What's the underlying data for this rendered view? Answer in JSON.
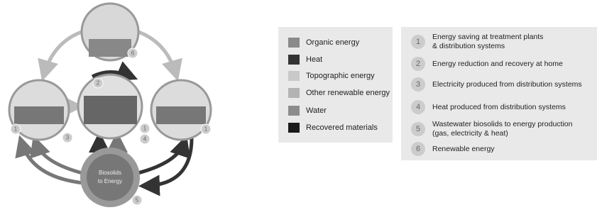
{
  "diagram": {
    "center_label": [
      "Biosolids",
      "to Energy"
    ],
    "badges": [
      "6",
      "2",
      "1",
      "3",
      "1",
      "4",
      "1",
      "5"
    ]
  },
  "legend": {
    "items": [
      "Organic energy",
      "Heat",
      "Topographic energy",
      "Other renewable energy",
      "Water",
      "Recovered materials"
    ]
  },
  "numbered_list": {
    "items": [
      {
        "number": "1",
        "lines": [
          "Energy saving at treatment plants",
          "& distribution systems"
        ]
      },
      {
        "number": "2",
        "lines": [
          "Energy reduction and recovery at home"
        ]
      },
      {
        "number": "3",
        "lines": [
          "Electricity produced from distribution systems"
        ]
      },
      {
        "number": "4",
        "lines": [
          "Heat produced from distribution systems"
        ]
      },
      {
        "number": "5",
        "lines": [
          "Wastewater biosolids to energy production",
          "(gas, electricity & heat)"
        ]
      },
      {
        "number": "6",
        "lines": [
          "Renewable energy"
        ]
      }
    ]
  }
}
